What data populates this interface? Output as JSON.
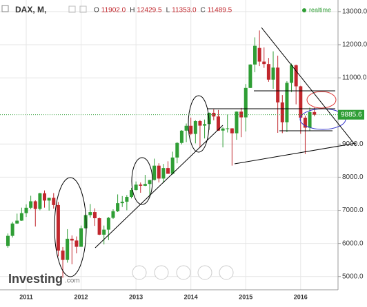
{
  "chart_data": {
    "type": "candlestick",
    "symbol": "DAX, M,",
    "header_labels": [
      "O",
      "H",
      "L",
      "C"
    ],
    "header_values": [
      "11902.0",
      "12429.5",
      "11353.0",
      "11489.5"
    ],
    "status": "realtime",
    "watermark": "Investing",
    "watermark_suffix": ".com",
    "last_price": {
      "value": 9885.6,
      "label": "9885.6"
    },
    "up_color": "#2f9e35",
    "down_color": "#c1272d",
    "categories": [
      null,
      null,
      null,
      null,
      "2011",
      null,
      null,
      null,
      null,
      null,
      null,
      null,
      null,
      null,
      null,
      null,
      "2012",
      null,
      null,
      null,
      null,
      null,
      null,
      null,
      null,
      null,
      null,
      null,
      "2013",
      null,
      null,
      null,
      null,
      null,
      null,
      null,
      null,
      null,
      null,
      null,
      "2014",
      null,
      null,
      null,
      null,
      null,
      null,
      null,
      null,
      null,
      null,
      null,
      "2015",
      null,
      null,
      null,
      null,
      null,
      null,
      null,
      null,
      null,
      null,
      null,
      "2016",
      null,
      null,
      null
    ],
    "open": [
      5925,
      6229,
      6601,
      6688,
      6914,
      7077,
      7272,
      7041,
      7514,
      7294,
      7376,
      7159,
      5784,
      5502,
      6141,
      6088,
      5898,
      6458,
      6856,
      6947,
      6761,
      6264,
      6416,
      6772,
      6970,
      7216,
      7260,
      7405,
      7612,
      7776,
      7741,
      7795,
      7914,
      8348,
      7959,
      8276,
      8103,
      8594,
      9033,
      9405,
      9552,
      9306,
      9692,
      9556,
      9603,
      9943,
      9833,
      9407,
      9470,
      9474,
      9326,
      9980,
      9806,
      10694,
      11402,
      11902,
      11489.5,
      11414,
      10945,
      11309,
      10259,
      9660,
      10850,
      11382,
      10743,
      9798,
      9495,
      9966
    ],
    "high": [
      6300,
      6650,
      6900,
      7080,
      7180,
      7440,
      7300,
      7530,
      7600,
      7380,
      7520,
      7250,
      5890,
      6430,
      6240,
      6210,
      6540,
      6900,
      7190,
      7060,
      6780,
      6540,
      6800,
      7030,
      7480,
      7430,
      7460,
      7680,
      7870,
      7840,
      8070,
      7920,
      8560,
      8420,
      8400,
      8480,
      8770,
      9060,
      9420,
      9620,
      9800,
      9720,
      9730,
      9740,
      9950,
      10050,
      10030,
      9510,
      9890,
      9480,
      9990,
      10090,
      10810,
      11410,
      12220,
      12429.5,
      11920,
      11600,
      11800,
      11670,
      10480,
      10900,
      11430,
      11400,
      10760,
      9860,
      10100,
      10100
    ],
    "low": [
      5870,
      6180,
      6590,
      6680,
      6800,
      7030,
      6510,
      7000,
      7080,
      6990,
      7050,
      5610,
      4965,
      5420,
      5370,
      5700,
      5900,
      6450,
      6780,
      6530,
      6250,
      5970,
      6100,
      6740,
      6950,
      7100,
      7000,
      7360,
      7600,
      7530,
      7730,
      7420,
      7900,
      7840,
      7820,
      8100,
      8080,
      8420,
      8990,
      9060,
      9270,
      9020,
      8900,
      9170,
      9430,
      9720,
      9400,
      8900,
      9350,
      8350,
      9130,
      9210,
      9380,
      10690,
      11170,
      11353,
      11300,
      10880,
      10670,
      9340,
      9330,
      9360,
      10570,
      10200,
      9310,
      8700,
      9400,
      9840
    ],
    "close": [
      6229,
      6601,
      6688,
      6914,
      7077,
      7272,
      7041,
      7514,
      7294,
      7376,
      7159,
      5784,
      5502,
      6141,
      6088,
      5898,
      6458,
      6856,
      6947,
      6761,
      6264,
      6416,
      6772,
      6970,
      7216,
      7260,
      7405,
      7612,
      7776,
      7741,
      7795,
      7914,
      8348,
      7959,
      8276,
      8103,
      8594,
      9033,
      9405,
      9552,
      9306,
      9692,
      9556,
      9603,
      9943,
      9833,
      9407,
      9470,
      9474,
      9326,
      9980,
      9806,
      10694,
      11402,
      11966,
      11489.5,
      11414,
      10945,
      11309,
      10259,
      9660,
      10850,
      11382,
      10743,
      9798,
      9495,
      9966,
      9885.6
    ],
    "ylim": [
      4600,
      13350
    ],
    "yticks": [
      {
        "value": 5000,
        "label": "5000.0"
      },
      {
        "value": 6000,
        "label": "6000.0"
      },
      {
        "value": 7000,
        "label": "7000.0"
      },
      {
        "value": 8000,
        "label": "8000.0"
      },
      {
        "value": 9000,
        "label": "9000.0"
      },
      {
        "value": 11000,
        "label": "11000.0"
      },
      {
        "value": 12000,
        "label": "12000.0"
      },
      {
        "value": 13000,
        "label": "13000.0"
      }
    ],
    "grid": true
  }
}
